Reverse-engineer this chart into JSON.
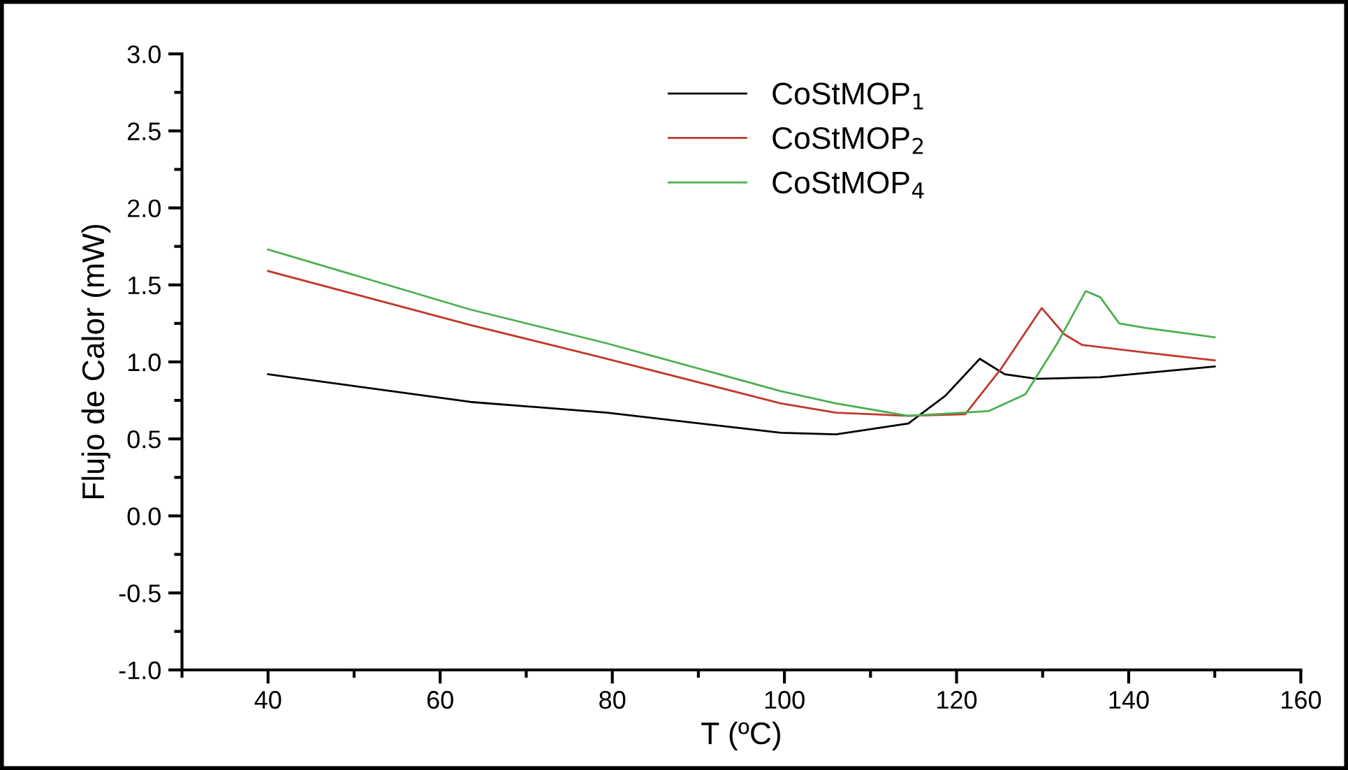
{
  "chart_data": {
    "type": "line",
    "xlabel": "T (ºC)",
    "ylabel": "Flujo de Calor (mW)",
    "xlim": [
      30,
      160
    ],
    "xticks": [
      40,
      60,
      80,
      100,
      120,
      140,
      160
    ],
    "ylim": [
      -1.0,
      3.0
    ],
    "yticks": [
      {
        "value": -1.0,
        "label": "-1.0"
      },
      {
        "value": -0.5,
        "label": "-0.5"
      },
      {
        "value": 0.0,
        "label": "0.0"
      },
      {
        "value": 0.5,
        "label": "0.5"
      },
      {
        "value": 1.0,
        "label": "1.0"
      },
      {
        "value": 1.5,
        "label": "1.5"
      },
      {
        "value": 2.0,
        "label": "2.0"
      },
      {
        "value": 2.5,
        "label": "2.5"
      },
      {
        "value": 3.0,
        "label": "3.0"
      }
    ],
    "grid": false,
    "legend": "top",
    "marker": "none",
    "line_style": "solid",
    "series": [
      {
        "name": "CoStMOP$_{1}$",
        "color": "#000000",
        "x": [
          40,
          63.5,
          79.4,
          99.6,
          106,
          114.4,
          118.7,
          122.7,
          125.6,
          129.3,
          136.7,
          150
        ],
        "values": [
          0.92,
          0.74,
          0.67,
          0.54,
          0.53,
          0.6,
          0.78,
          1.02,
          0.92,
          0.89,
          0.9,
          0.97
        ]
      },
      {
        "name": "CoStMOP$_{2}$",
        "color": "#c0392b",
        "x": [
          40,
          63.5,
          79.4,
          99.6,
          106,
          114.4,
          121,
          125.1,
          129.9,
          132.5,
          134.6,
          142,
          150
        ],
        "values": [
          1.59,
          1.24,
          1.02,
          0.73,
          0.67,
          0.65,
          0.66,
          0.95,
          1.35,
          1.18,
          1.11,
          1.06,
          1.01
        ]
      },
      {
        "name": "CoStMOP$_{4}$",
        "color": "#4caf50",
        "x": [
          40,
          63.5,
          79.4,
          99.6,
          106,
          114.4,
          123.7,
          128,
          131.7,
          135,
          136.7,
          138.9,
          142,
          150
        ],
        "values": [
          1.73,
          1.34,
          1.12,
          0.81,
          0.73,
          0.65,
          0.68,
          0.79,
          1.12,
          1.46,
          1.42,
          1.25,
          1.22,
          1.16
        ]
      }
    ]
  }
}
